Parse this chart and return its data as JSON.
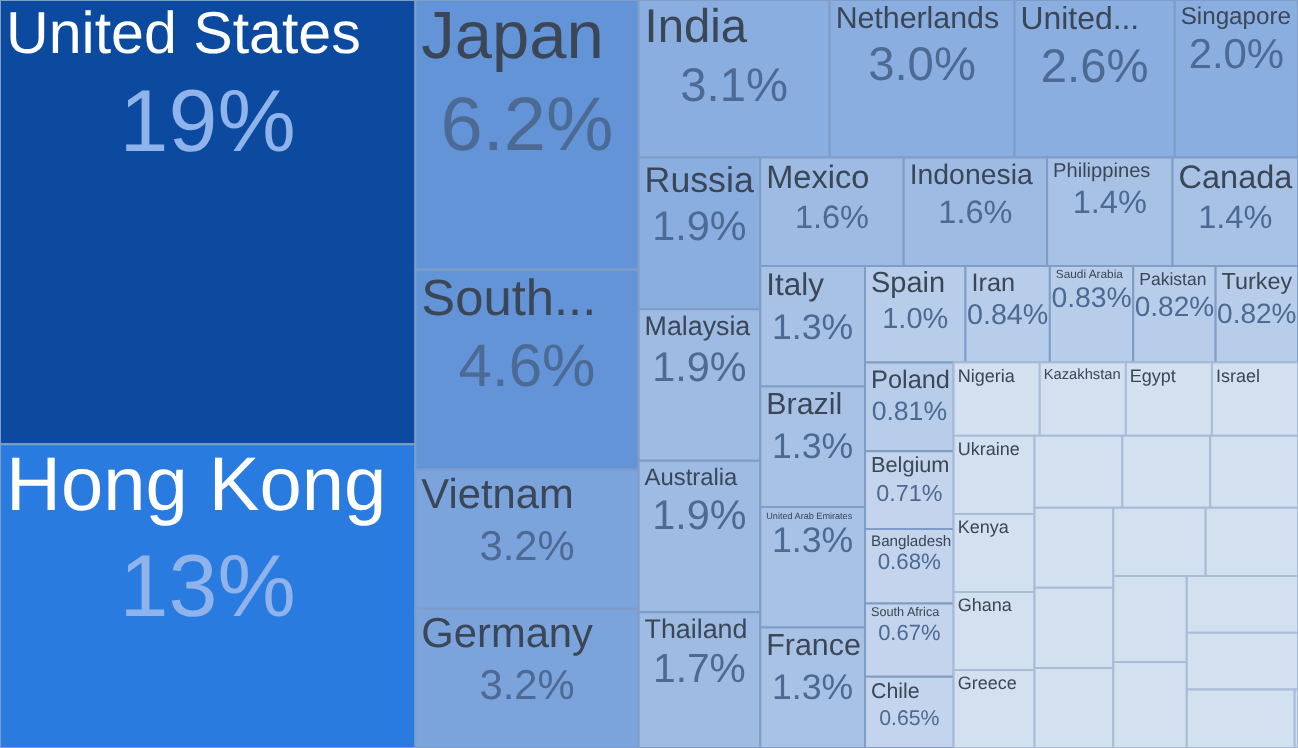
{
  "chart_data": {
    "type": "other",
    "categories": [
      "United States",
      "Hong Kong",
      "Japan",
      "South...",
      "Vietnam",
      "Germany",
      "India",
      "Netherlands",
      "United...",
      "Singapore",
      "Russia",
      "Malaysia",
      "Australia",
      "Thailand",
      "Mexico",
      "Indonesia",
      "Philippines",
      "Canada",
      "Italy",
      "Brazil",
      "United Arab Emirates",
      "France",
      "Spain",
      "Iran",
      "Saudi Arabia",
      "Pakistan",
      "Turkey",
      "Poland",
      "Belgium",
      "Bangladesh",
      "South Africa",
      "Chile"
    ],
    "values": [
      19,
      13,
      6.2,
      4.6,
      3.2,
      3.2,
      3.1,
      3.0,
      2.6,
      2.0,
      1.9,
      1.9,
      1.9,
      1.7,
      1.6,
      1.6,
      1.4,
      1.4,
      1.3,
      1.3,
      1.3,
      1.3,
      1.0,
      0.84,
      0.83,
      0.82,
      0.82,
      0.81,
      0.71,
      0.68,
      0.67,
      0.65
    ],
    "value_labels": [
      "19%",
      "13%",
      "6.2%",
      "4.6%",
      "3.2%",
      "3.2%",
      "3.1%",
      "3.0%",
      "2.6%",
      "2.0%",
      "1.9%",
      "1.9%",
      "1.9%",
      "1.7%",
      "1.6%",
      "1.6%",
      "1.4%",
      "1.4%",
      "1.3%",
      "1.3%",
      "1.3%",
      "1.3%",
      "1.0%",
      "0.84%",
      "0.83%",
      "0.82%",
      "0.82%",
      "0.81%",
      "0.71%",
      "0.68%",
      "0.67%",
      "0.65%"
    ],
    "colors": [
      "#0b4a9e",
      "#2a7be0",
      "#6394d8",
      "#6394d8",
      "#7ba3dc",
      "#7ba3dc",
      "#8aaee0",
      "#8aaee0",
      "#8aaee0",
      "#8aaee0",
      "#8aaee0",
      "#9dbbe3",
      "#9dbbe3",
      "#9dbbe3",
      "#9dbbe3",
      "#9dbbe3",
      "#a8c2e6",
      "#a8c2e6",
      "#a8c2e6",
      "#a8c2e6",
      "#a8c2e6",
      "#a8c2e6",
      "#b8cde9",
      "#b8cde9",
      "#b8cde9",
      "#b8cde9",
      "#b8cde9",
      "#b8cde9",
      "#c3d4ec",
      "#c3d4ec",
      "#c3d4ec",
      "#c3d4ec"
    ],
    "annotations": [
      "Nigeria",
      "Kazakhstan",
      "Egypt",
      "Israel",
      "Ukraine",
      "Kenya",
      "Ghana",
      "Greece"
    ]
  }
}
